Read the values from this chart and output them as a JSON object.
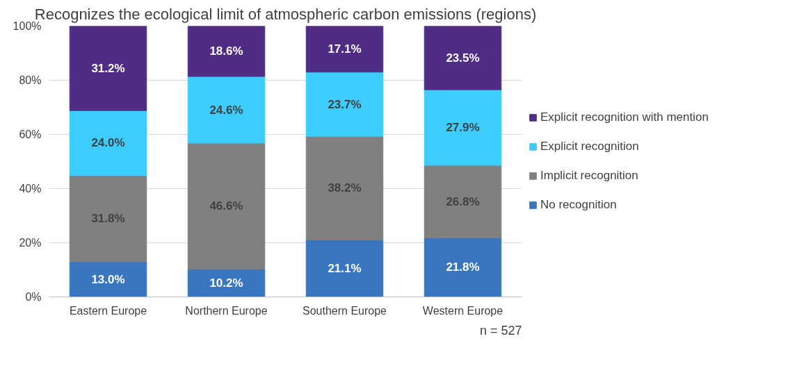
{
  "chart_data": {
    "type": "bar",
    "stacked": true,
    "title": "Recognizes the ecological limit of atmospheric carbon emissions (regions)",
    "categories": [
      "Eastern Europe",
      "Northern Europe",
      "Southern Europe",
      "Western Europe"
    ],
    "series": [
      {
        "name": "No recognition",
        "color": "#3a76c0",
        "values": [
          13.0,
          10.2,
          21.1,
          21.8
        ],
        "value_labels": [
          "13.0%",
          "10.2%",
          "21.1%",
          "21.8%"
        ]
      },
      {
        "name": "Implicit recognition",
        "color": "#808080",
        "values": [
          31.8,
          46.6,
          38.2,
          26.8
        ],
        "value_labels": [
          "31.8%",
          "46.6%",
          "38.2%",
          "26.8%"
        ]
      },
      {
        "name": "Explicit recognition",
        "color": "#3ccdfc",
        "values": [
          24.0,
          24.6,
          23.7,
          27.9
        ],
        "value_labels": [
          "24.0%",
          "24.6%",
          "23.7%",
          "27.9%"
        ]
      },
      {
        "name": "Explicit recognition with mention",
        "color": "#4f2d85",
        "values": [
          31.2,
          18.6,
          17.1,
          23.5
        ],
        "value_labels": [
          "31.2%",
          "18.6%",
          "17.1%",
          "23.5%"
        ]
      }
    ],
    "ylim": [
      0,
      100
    ],
    "yticks": [
      {
        "value": 0,
        "label": "0%"
      },
      {
        "value": 20,
        "label": "20%"
      },
      {
        "value": 40,
        "label": "40%"
      },
      {
        "value": 60,
        "label": "60%"
      },
      {
        "value": 80,
        "label": "80%"
      },
      {
        "value": 100,
        "label": "100%"
      }
    ],
    "grid": "y",
    "legend": "right",
    "annotations": [
      "n = 527"
    ]
  }
}
